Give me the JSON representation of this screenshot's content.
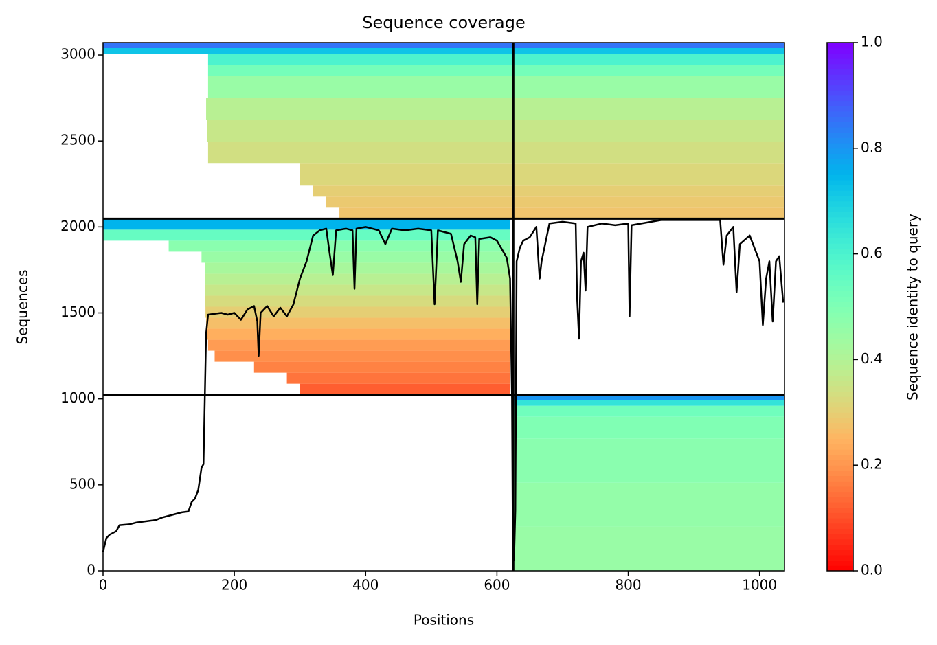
{
  "chart_data": {
    "type": "coverage",
    "title": "Sequence coverage",
    "xlabel": "Positions",
    "ylabel": "Sequences",
    "xlim": [
      0,
      1038
    ],
    "ylim": [
      0,
      3072
    ],
    "xticks": [
      0,
      200,
      400,
      600,
      800,
      1000
    ],
    "yticks": [
      0,
      500,
      1000,
      1500,
      2000,
      2500,
      3000
    ],
    "colormap": "rainbow_r",
    "colorbar": {
      "label": "Sequence identity to query",
      "lim": [
        0,
        1
      ],
      "ticks": [
        {
          "value": 0,
          "label": "0.0"
        },
        {
          "value": 0.2,
          "label": "0.2"
        },
        {
          "value": 0.4,
          "label": "0.4"
        },
        {
          "value": 0.6,
          "label": "0.6"
        },
        {
          "value": 0.8,
          "label": "0.8"
        },
        {
          "value": 1,
          "label": "1.0"
        }
      ]
    },
    "heatmap": [
      [
        625,
        1038,
        0,
        256,
        0.45
      ],
      [
        625,
        1038,
        256,
        512,
        0.46
      ],
      [
        625,
        1038,
        512,
        768,
        0.48
      ],
      [
        625,
        1038,
        768,
        896,
        0.5
      ],
      [
        625,
        1038,
        896,
        960,
        0.53
      ],
      [
        625,
        1038,
        960,
        992,
        0.65
      ],
      [
        625,
        1038,
        992,
        1024,
        0.8
      ],
      [
        300,
        620,
        1024,
        1088,
        0.12
      ],
      [
        280,
        620,
        1088,
        1152,
        0.15
      ],
      [
        230,
        620,
        1152,
        1216,
        0.17
      ],
      [
        170,
        620,
        1216,
        1280,
        0.19
      ],
      [
        160,
        620,
        1280,
        1344,
        0.21
      ],
      [
        158,
        620,
        1344,
        1408,
        0.24
      ],
      [
        157,
        620,
        1408,
        1472,
        0.27
      ],
      [
        156,
        620,
        1472,
        1536,
        0.3
      ],
      [
        155,
        620,
        1536,
        1600,
        0.33
      ],
      [
        155,
        620,
        1600,
        1664,
        0.36
      ],
      [
        155,
        620,
        1664,
        1728,
        0.39
      ],
      [
        155,
        620,
        1728,
        1792,
        0.42
      ],
      [
        150,
        620,
        1792,
        1856,
        0.45
      ],
      [
        100,
        620,
        1856,
        1920,
        0.48
      ],
      [
        0,
        620,
        1920,
        1984,
        0.55
      ],
      [
        0,
        620,
        1984,
        2048,
        0.75
      ],
      [
        360,
        625,
        2048,
        2112,
        0.28
      ],
      [
        340,
        625,
        2112,
        2176,
        0.29
      ],
      [
        320,
        625,
        2176,
        2240,
        0.3
      ],
      [
        300,
        625,
        2240,
        2368,
        0.32
      ],
      [
        160,
        625,
        2368,
        2496,
        0.34
      ],
      [
        158,
        625,
        2496,
        2624,
        0.36
      ],
      [
        157,
        625,
        2624,
        2752,
        0.39
      ],
      [
        160,
        625,
        2752,
        2880,
        0.45
      ],
      [
        160,
        625,
        2880,
        2944,
        0.52
      ],
      [
        160,
        625,
        2944,
        3008,
        0.6
      ],
      [
        0,
        625,
        3008,
        3040,
        0.72
      ],
      [
        0,
        625,
        3040,
        3072,
        0.85
      ],
      [
        625,
        1038,
        2048,
        2112,
        0.28
      ],
      [
        625,
        1038,
        2112,
        2176,
        0.29
      ],
      [
        625,
        1038,
        2176,
        2240,
        0.3
      ],
      [
        625,
        1038,
        2240,
        2368,
        0.32
      ],
      [
        625,
        1038,
        2368,
        2496,
        0.34
      ],
      [
        625,
        1038,
        2496,
        2624,
        0.36
      ],
      [
        625,
        1038,
        2624,
        2752,
        0.39
      ],
      [
        625,
        1038,
        2752,
        2880,
        0.45
      ],
      [
        625,
        1038,
        2880,
        2944,
        0.52
      ],
      [
        625,
        1038,
        2944,
        3008,
        0.6
      ],
      [
        625,
        1038,
        3008,
        3040,
        0.72
      ],
      [
        625,
        1038,
        3040,
        3072,
        0.85
      ]
    ],
    "dividers": {
      "x": [
        625
      ],
      "y": [
        1024,
        2048
      ]
    },
    "coverage": {
      "color": "#000000",
      "x": [
        0,
        5,
        10,
        20,
        25,
        40,
        50,
        70,
        80,
        90,
        110,
        120,
        130,
        135,
        140,
        145,
        150,
        153,
        155,
        157,
        160,
        180,
        190,
        200,
        210,
        220,
        230,
        235,
        237,
        240,
        250,
        260,
        270,
        280,
        290,
        300,
        310,
        320,
        330,
        340,
        345,
        350,
        355,
        370,
        380,
        383,
        386,
        400,
        420,
        430,
        440,
        460,
        480,
        500,
        505,
        510,
        530,
        540,
        545,
        550,
        560,
        567,
        570,
        573,
        590,
        600,
        615,
        620,
        623,
        624,
        626,
        628,
        630,
        635,
        640,
        650,
        660,
        665,
        668,
        680,
        700,
        720,
        722,
        725,
        728,
        732,
        735,
        738,
        760,
        780,
        800,
        802,
        805,
        850,
        900,
        940,
        945,
        950,
        960,
        965,
        970,
        985,
        1000,
        1005,
        1010,
        1015,
        1020,
        1025,
        1030,
        1036
      ],
      "y": [
        110,
        190,
        210,
        230,
        265,
        270,
        280,
        290,
        295,
        310,
        330,
        340,
        345,
        400,
        420,
        470,
        600,
        620,
        1000,
        1380,
        1490,
        1500,
        1490,
        1500,
        1460,
        1520,
        1540,
        1450,
        1250,
        1500,
        1540,
        1480,
        1530,
        1480,
        1550,
        1700,
        1800,
        1950,
        1980,
        1990,
        1850,
        1720,
        1980,
        1990,
        1980,
        1640,
        1990,
        2000,
        1980,
        1900,
        1990,
        1980,
        1990,
        1980,
        1550,
        1980,
        1960,
        1800,
        1680,
        1900,
        1950,
        1940,
        1550,
        1930,
        1940,
        1920,
        1820,
        1700,
        1000,
        300,
        60,
        350,
        1800,
        1880,
        1920,
        1940,
        2000,
        1700,
        1800,
        2020,
        2030,
        2020,
        1600,
        1350,
        1800,
        1850,
        1630,
        2000,
        2020,
        2010,
        2020,
        1480,
        2010,
        2040,
        2040,
        2040,
        1780,
        1950,
        2000,
        1620,
        1900,
        1950,
        1800,
        1430,
        1700,
        1800,
        1450,
        1800,
        1830,
        1560
      ]
    }
  }
}
